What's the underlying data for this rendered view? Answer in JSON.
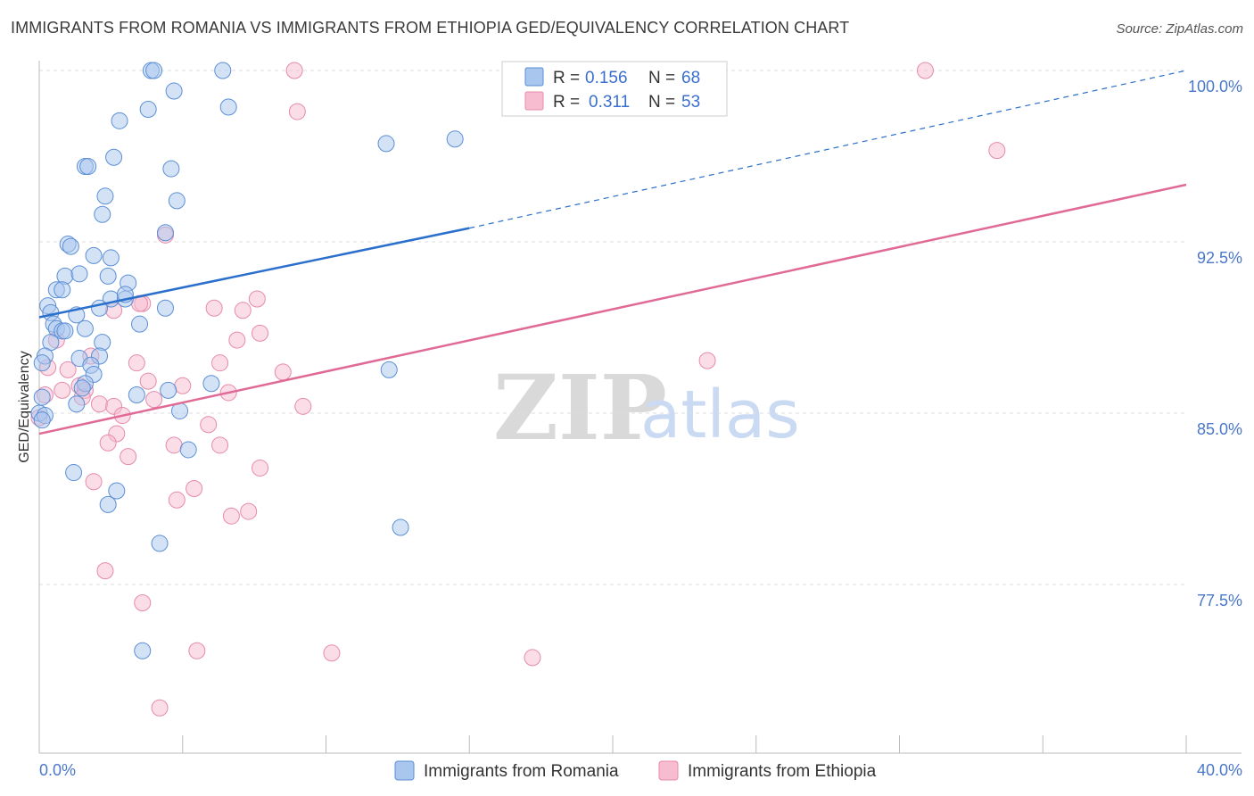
{
  "title": "IMMIGRANTS FROM ROMANIA VS IMMIGRANTS FROM ETHIOPIA GED/EQUIVALENCY CORRELATION CHART",
  "source": "Source: ZipAtlas.com",
  "watermark": {
    "zip": "ZIP",
    "atlas": "atlas"
  },
  "colors": {
    "romania_fill": "#a9c6ee",
    "romania_stroke": "#5b8fd6",
    "romania_line": "#2a6fcc",
    "ethiopia_fill": "#f7bcd0",
    "ethiopia_stroke": "#e68aab",
    "ethiopia_line": "#e06a95",
    "grid": "#dddddd",
    "tick_label": "#4a78c9"
  },
  "legend": {
    "r_label": "R =",
    "n_label": "N =",
    "romania": {
      "r": "0.156",
      "n": "68"
    },
    "ethiopia": {
      "r": "0.311",
      "n": "53"
    }
  },
  "chart_data": {
    "type": "scatter",
    "title": "IMMIGRANTS FROM ROMANIA VS IMMIGRANTS FROM ETHIOPIA GED/EQUIVALENCY CORRELATION CHART",
    "xlabel": "",
    "ylabel": "GED/Equivalency",
    "xlim": [
      0,
      40
    ],
    "ylim": [
      71.0,
      100.8
    ],
    "x_tick_labels": [
      "0.0%",
      "40.0%"
    ],
    "y_ticks": [
      {
        "value": 77.5,
        "label": "77.5%"
      },
      {
        "value": 85.0,
        "label": "85.0%"
      },
      {
        "value": 92.5,
        "label": "92.5%"
      },
      {
        "value": 100.0,
        "label": "100.0%"
      }
    ],
    "grid": true,
    "legend_position": "top-center",
    "series": [
      {
        "name": "Immigrants from Romania",
        "r": 0.156,
        "n": 68,
        "trend": {
          "x0": 0.0,
          "y0": 89.2,
          "x1": 15.0,
          "y1": 93.1,
          "dash_to_x": 40.0,
          "dash_to_y": 100.0
        },
        "points": [
          [
            3.9,
            100.0
          ],
          [
            4.0,
            100.0
          ],
          [
            6.4,
            100.0
          ],
          [
            4.7,
            99.1
          ],
          [
            6.6,
            98.4
          ],
          [
            3.8,
            98.3
          ],
          [
            2.8,
            97.8
          ],
          [
            12.1,
            96.8
          ],
          [
            14.5,
            97.0
          ],
          [
            2.6,
            96.2
          ],
          [
            1.6,
            95.8
          ],
          [
            1.7,
            95.8
          ],
          [
            4.6,
            95.7
          ],
          [
            2.3,
            94.5
          ],
          [
            4.8,
            94.3
          ],
          [
            2.2,
            93.7
          ],
          [
            4.4,
            92.9
          ],
          [
            1.0,
            92.4
          ],
          [
            1.1,
            92.3
          ],
          [
            1.9,
            91.9
          ],
          [
            2.5,
            91.8
          ],
          [
            0.9,
            91.0
          ],
          [
            1.4,
            91.1
          ],
          [
            2.4,
            91.0
          ],
          [
            3.1,
            90.7
          ],
          [
            0.6,
            90.4
          ],
          [
            0.8,
            90.4
          ],
          [
            2.5,
            90.0
          ],
          [
            3.0,
            90.0
          ],
          [
            3.0,
            90.2
          ],
          [
            0.3,
            89.7
          ],
          [
            0.4,
            89.4
          ],
          [
            2.1,
            89.6
          ],
          [
            4.4,
            89.6
          ],
          [
            1.3,
            89.3
          ],
          [
            0.5,
            88.9
          ],
          [
            0.6,
            88.7
          ],
          [
            0.8,
            88.6
          ],
          [
            1.6,
            88.7
          ],
          [
            3.5,
            88.9
          ],
          [
            0.4,
            88.1
          ],
          [
            0.9,
            88.6
          ],
          [
            2.2,
            88.1
          ],
          [
            0.2,
            87.5
          ],
          [
            1.4,
            87.4
          ],
          [
            2.1,
            87.5
          ],
          [
            1.8,
            87.1
          ],
          [
            0.1,
            87.2
          ],
          [
            1.9,
            86.7
          ],
          [
            12.2,
            86.9
          ],
          [
            1.6,
            86.3
          ],
          [
            1.5,
            86.1
          ],
          [
            4.5,
            86.0
          ],
          [
            6.0,
            86.3
          ],
          [
            3.4,
            85.8
          ],
          [
            0.1,
            85.7
          ],
          [
            1.3,
            85.4
          ],
          [
            4.9,
            85.1
          ],
          [
            5.2,
            83.4
          ],
          [
            1.2,
            82.4
          ],
          [
            2.7,
            81.6
          ],
          [
            2.4,
            81.0
          ],
          [
            12.6,
            80.0
          ],
          [
            4.2,
            79.3
          ],
          [
            3.6,
            74.6
          ],
          [
            0.0,
            85.0
          ],
          [
            0.2,
            84.9
          ],
          [
            0.1,
            84.7
          ]
        ]
      },
      {
        "name": "Immigrants from Ethiopia",
        "r": 0.311,
        "n": 53,
        "trend": {
          "x0": 0.0,
          "y0": 84.1,
          "x1": 40.0,
          "y1": 95.0
        },
        "points": [
          [
            8.9,
            100.0
          ],
          [
            30.9,
            100.0
          ],
          [
            9.0,
            98.2
          ],
          [
            33.4,
            96.5
          ],
          [
            4.4,
            92.8
          ],
          [
            7.6,
            90.0
          ],
          [
            3.6,
            89.8
          ],
          [
            3.5,
            89.8
          ],
          [
            6.1,
            89.6
          ],
          [
            2.6,
            89.5
          ],
          [
            7.1,
            89.5
          ],
          [
            7.7,
            88.5
          ],
          [
            6.9,
            88.2
          ],
          [
            0.6,
            88.2
          ],
          [
            1.8,
            87.5
          ],
          [
            3.4,
            87.2
          ],
          [
            6.3,
            87.2
          ],
          [
            23.3,
            87.3
          ],
          [
            0.3,
            87.0
          ],
          [
            1.0,
            86.9
          ],
          [
            8.5,
            86.8
          ],
          [
            3.8,
            86.4
          ],
          [
            1.4,
            86.2
          ],
          [
            5.0,
            86.2
          ],
          [
            1.6,
            86.0
          ],
          [
            0.8,
            86.0
          ],
          [
            6.6,
            85.9
          ],
          [
            0.2,
            85.8
          ],
          [
            1.5,
            85.7
          ],
          [
            4.0,
            85.6
          ],
          [
            2.1,
            85.4
          ],
          [
            9.2,
            85.3
          ],
          [
            2.6,
            85.3
          ],
          [
            2.9,
            84.9
          ],
          [
            5.9,
            84.5
          ],
          [
            2.7,
            84.1
          ],
          [
            2.4,
            83.7
          ],
          [
            4.7,
            83.6
          ],
          [
            6.3,
            83.6
          ],
          [
            3.1,
            83.1
          ],
          [
            7.7,
            82.6
          ],
          [
            1.9,
            82.0
          ],
          [
            5.4,
            81.7
          ],
          [
            4.8,
            81.2
          ],
          [
            7.3,
            80.7
          ],
          [
            6.7,
            80.5
          ],
          [
            2.3,
            78.1
          ],
          [
            3.6,
            76.7
          ],
          [
            5.5,
            74.6
          ],
          [
            10.2,
            74.5
          ],
          [
            17.2,
            74.3
          ],
          [
            4.2,
            72.1
          ],
          [
            0.0,
            84.8
          ]
        ]
      }
    ]
  },
  "bottom_legend": {
    "romania_label": "Immigrants from Romania",
    "ethiopia_label": "Immigrants from Ethiopia"
  }
}
